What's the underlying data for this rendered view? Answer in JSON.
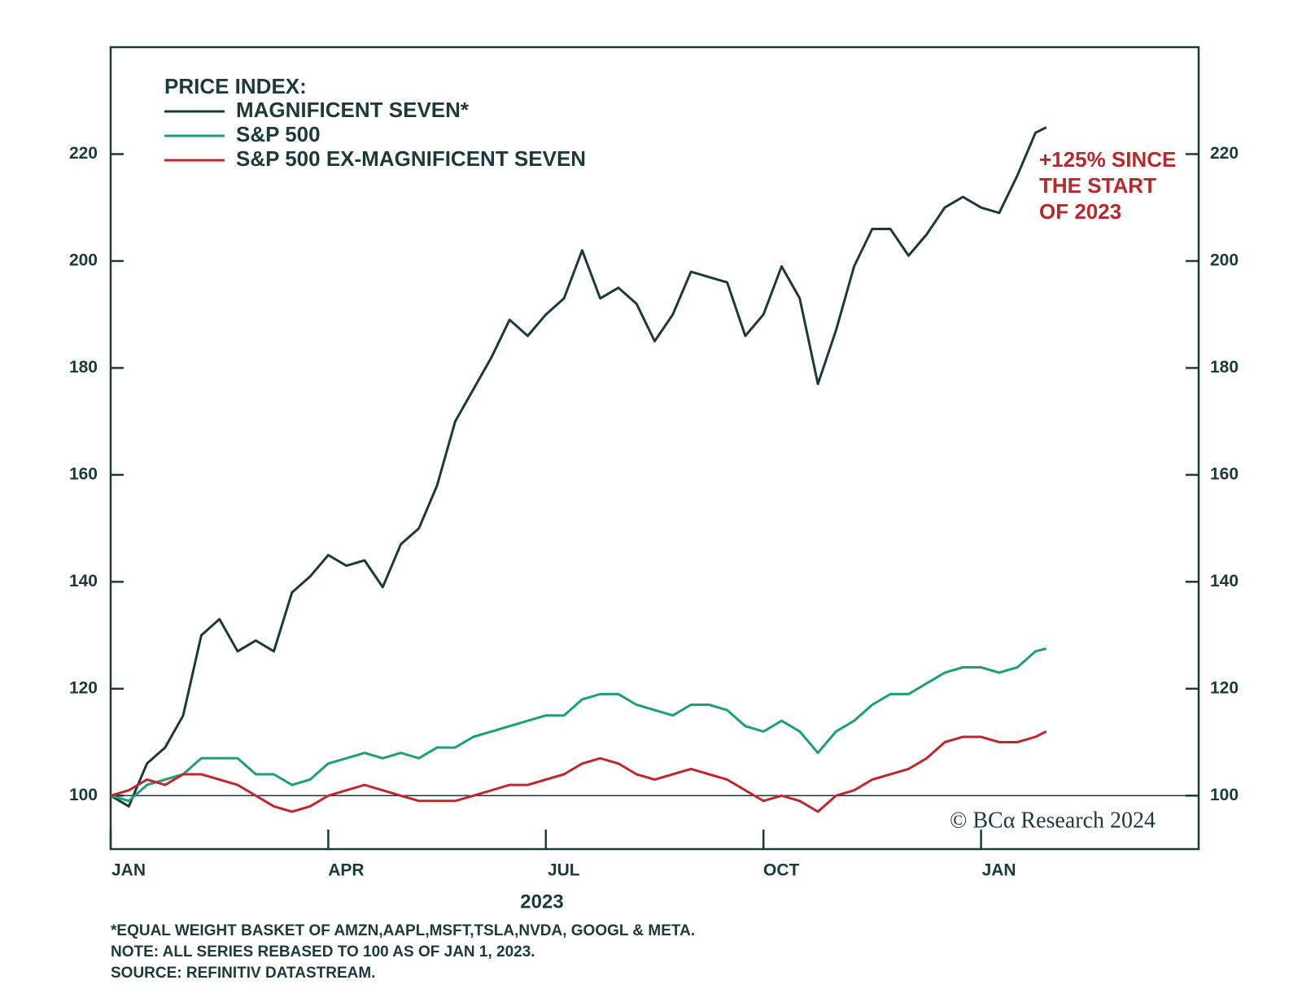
{
  "chart_data": {
    "type": "line",
    "legend_title": "PRICE INDEX:",
    "x": [
      0,
      0.25,
      0.5,
      0.75,
      1,
      1.25,
      1.5,
      1.75,
      2,
      2.25,
      2.5,
      2.75,
      3,
      3.25,
      3.5,
      3.75,
      4,
      4.25,
      4.5,
      4.75,
      5,
      5.25,
      5.5,
      5.75,
      6,
      6.25,
      6.5,
      6.75,
      7,
      7.25,
      7.5,
      7.75,
      8,
      8.25,
      8.5,
      8.75,
      9,
      9.25,
      9.5,
      9.75,
      10,
      10.25,
      10.5,
      10.75,
      11,
      11.25,
      11.5,
      11.75,
      12,
      12.25,
      12.5,
      12.75,
      12.9
    ],
    "series": [
      {
        "name": "MAGNIFICENT SEVEN*",
        "color": "#1d3a3a",
        "values": [
          100,
          98,
          106,
          109,
          115,
          130,
          133,
          127,
          129,
          127,
          138,
          141,
          145,
          143,
          144,
          139,
          147,
          150,
          158,
          170,
          176,
          182,
          189,
          186,
          190,
          193,
          202,
          193,
          195,
          192,
          185,
          190,
          198,
          197,
          196,
          186,
          190,
          199,
          193,
          177,
          187,
          199,
          206,
          206,
          201,
          205,
          210,
          212,
          210,
          209,
          216,
          224,
          225
        ]
      },
      {
        "name": "S&P 500",
        "color": "#1ba07a",
        "values": [
          100,
          99,
          102,
          103,
          104,
          107,
          107,
          107,
          104,
          104,
          102,
          103,
          106,
          107,
          108,
          107,
          108,
          107,
          109,
          109,
          111,
          112,
          113,
          114,
          115,
          115,
          118,
          119,
          119,
          117,
          116,
          115,
          117,
          117,
          116,
          113,
          112,
          114,
          112,
          108,
          112,
          114,
          117,
          119,
          119,
          121,
          123,
          124,
          124,
          123,
          124,
          127,
          127.5
        ]
      },
      {
        "name": "S&P 500 EX-MAGNIFICENT SEVEN",
        "color": "#c0282d",
        "values": [
          100,
          101,
          103,
          102,
          104,
          104,
          103,
          102,
          100,
          98,
          97,
          98,
          100,
          101,
          102,
          101,
          100,
          99,
          99,
          99,
          100,
          101,
          102,
          102,
          103,
          104,
          106,
          107,
          106,
          104,
          103,
          104,
          105,
          104,
          103,
          101,
          99,
          100,
          99,
          97,
          100,
          101,
          103,
          104,
          105,
          107,
          110,
          111,
          111,
          110,
          110,
          111,
          112
        ]
      }
    ],
    "xlim": [
      0,
      15
    ],
    "xticks": [
      {
        "value": 0,
        "label": "JAN"
      },
      {
        "value": 3,
        "label": "APR"
      },
      {
        "value": 6,
        "label": "JUL"
      },
      {
        "value": 9,
        "label": "OCT"
      },
      {
        "value": 12,
        "label": "JAN"
      }
    ],
    "x_label": "2023",
    "ylim": [
      90,
      240
    ],
    "yticks": [
      100,
      120,
      140,
      160,
      180,
      200,
      220
    ],
    "reference_line": 100,
    "annotation": [
      "+125% SINCE",
      "THE START",
      "OF 2023"
    ],
    "annotation_color": "#b8282c",
    "watermark": "© BCα Research 2024",
    "footnotes": [
      "*EQUAL WEIGHT BASKET OF AMZN,AAPL,MSFT,TSLA,NVDA, GOOGL & META.",
      "NOTE: ALL SERIES REBASED TO 100 AS OF JAN 1, 2023.",
      "SOURCE: REFINITIV DATASTREAM."
    ]
  }
}
